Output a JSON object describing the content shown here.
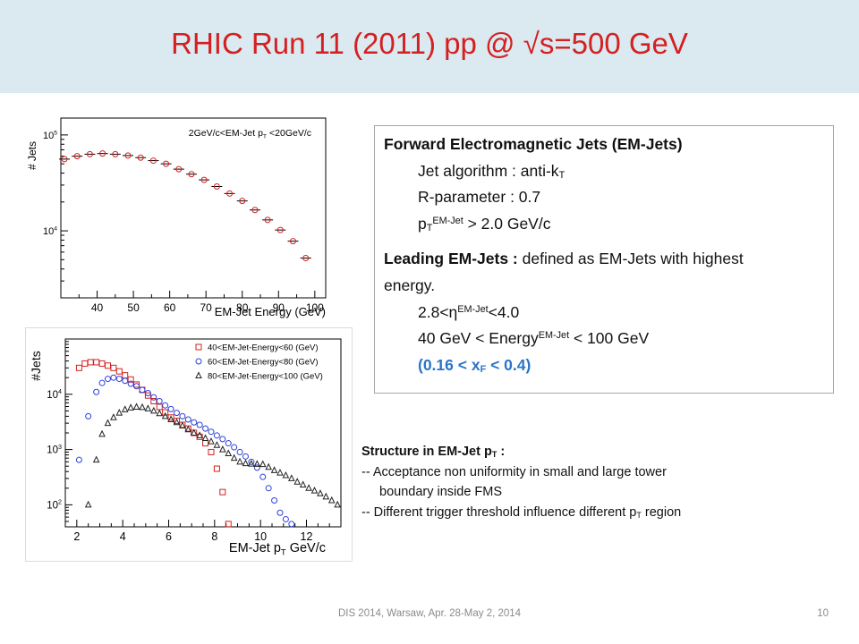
{
  "slide": {
    "title": "RHIC Run 11 (2011) pp @ √s=500 GeV",
    "footer": "DIS 2014,  Warsaw,  Apr. 28-May 2, 2014",
    "page_number": "10",
    "colors": {
      "header_bg": "#dbe9f1",
      "title": "#d42020",
      "accent_blue": "#2a74c8"
    }
  },
  "infobox": {
    "heading": "Forward Electromagnetic Jets (EM-Jets)",
    "algo_text": "Jet algorithm : anti-k",
    "algo_sub": "T",
    "rparam": "R-parameter  : 0.7",
    "pt_p": "p",
    "pt_sub": "T",
    "pt_sup": "EM-Jet",
    "pt_rest": " > 2.0 GeV/c",
    "leading_bold": "Leading EM-Jets :",
    "leading_rest": "  defined as EM-Jets with highest",
    "leading_cont": "energy.",
    "eta_pre": "2.8<η",
    "eta_sup": "EM-Jet",
    "eta_post": "<4.0",
    "energy_pre": "40 GeV < Energy",
    "energy_sup": "EM-Jet",
    "energy_post": " < 100 GeV",
    "xf_pre": "(0.16 < x",
    "xf_sub": "F",
    "xf_post": " < 0.4)"
  },
  "structure": {
    "heading_pre": "Structure in EM-Jet p",
    "heading_sub": "T",
    "heading_post": "  :",
    "line1": "-- Acceptance non uniformity in small and large tower",
    "line1_cont": "boundary inside FMS",
    "line2_pre": "-- Different  trigger threshold influence different  p",
    "line2_sub": "T",
    "line2_post": " region"
  },
  "chart_data": [
    {
      "type": "scatter",
      "title": "",
      "xlabel": "EM-Jet Energy (GeV)",
      "ylabel": "# Jets",
      "xlim": [
        30,
        103
      ],
      "ylim": [
        2000,
        150000
      ],
      "y_scale": "log",
      "x_ticks": [
        40,
        50,
        60,
        70,
        80,
        90,
        100
      ],
      "y_ticks": [
        {
          "value": 10000,
          "label": "10",
          "exp": "4"
        },
        {
          "value": 100000,
          "label": "10",
          "exp": "5"
        }
      ],
      "annotation": "2GeV/c<EM-Jet p",
      "annotation_sub": "T",
      "annotation_post": " <20GeV/c",
      "series": [
        {
          "color": "#d42020",
          "marker": "circle",
          "x": [
            31,
            34.5,
            38,
            41.5,
            45,
            48.5,
            52,
            55.5,
            59,
            62.5,
            66,
            69.5,
            73,
            76.5,
            80,
            83.5,
            87,
            90.5,
            94,
            97.5
          ],
          "y": [
            56000,
            60000,
            63000,
            64000,
            63000,
            61000,
            58000,
            54000,
            50000,
            44000,
            39000,
            34000,
            29000,
            24500,
            20500,
            16500,
            13000,
            10200,
            7800,
            5200
          ]
        }
      ]
    },
    {
      "type": "scatter",
      "title": "",
      "xlabel": "EM-Jet p",
      "xlabel_sub": "T",
      "xlabel_post": " GeV/c",
      "ylabel": "#Jets",
      "xlim": [
        1.5,
        13.5
      ],
      "ylim": [
        40,
        100000
      ],
      "y_scale": "log",
      "x_ticks": [
        2,
        4,
        6,
        8,
        10,
        12
      ],
      "y_ticks": [
        {
          "value": 100,
          "label": "10",
          "exp": "2"
        },
        {
          "value": 1000,
          "label": "10",
          "exp": "3"
        },
        {
          "value": 10000,
          "label": "10",
          "exp": "4"
        }
      ],
      "legend_position": "top-right",
      "series": [
        {
          "name": "40<EM-Jet-Energy<60 (GeV)",
          "color": "#d42020",
          "marker": "square",
          "x": [
            2.1,
            2.35,
            2.6,
            2.85,
            3.1,
            3.35,
            3.6,
            3.85,
            4.1,
            4.35,
            4.6,
            4.85,
            5.1,
            5.35,
            5.6,
            5.85,
            6.1,
            6.35,
            6.6,
            6.85,
            7.1,
            7.35,
            7.6,
            7.85,
            8.1,
            8.35,
            8.6
          ],
          "y": [
            30000,
            36000,
            38000,
            38000,
            36000,
            33000,
            30000,
            26000,
            22000,
            18500,
            15000,
            12000,
            9500,
            7500,
            5900,
            4700,
            3800,
            3300,
            2800,
            2400,
            2000,
            1700,
            1300,
            900,
            450,
            170,
            45
          ]
        },
        {
          "name": "60<EM-Jet-Energy<80 (GeV)",
          "color": "#2c40d8",
          "marker": "circle",
          "x": [
            2.1,
            2.5,
            2.85,
            3.1,
            3.35,
            3.6,
            3.85,
            4.1,
            4.35,
            4.6,
            4.85,
            5.1,
            5.35,
            5.6,
            5.85,
            6.1,
            6.35,
            6.6,
            6.85,
            7.1,
            7.35,
            7.6,
            7.85,
            8.1,
            8.35,
            8.6,
            8.85,
            9.1,
            9.35,
            9.6,
            9.85,
            10.1,
            10.35,
            10.6,
            10.85,
            11.1,
            11.35
          ],
          "y": [
            650,
            4000,
            11000,
            16000,
            19000,
            20000,
            19000,
            17500,
            15500,
            14000,
            12000,
            10500,
            8800,
            7500,
            6300,
            5400,
            4600,
            4000,
            3500,
            3100,
            2800,
            2400,
            2100,
            1800,
            1550,
            1300,
            1100,
            900,
            750,
            600,
            470,
            320,
            200,
            120,
            72,
            55,
            45
          ]
        },
        {
          "name": "80<EM-Jet-Energy<100 (GeV)",
          "color": "#222222",
          "marker": "triangle",
          "x": [
            2.5,
            2.85,
            3.1,
            3.35,
            3.6,
            3.85,
            4.1,
            4.35,
            4.6,
            4.85,
            5.1,
            5.35,
            5.6,
            5.85,
            6.1,
            6.35,
            6.6,
            6.85,
            7.1,
            7.35,
            7.6,
            7.85,
            8.1,
            8.35,
            8.6,
            8.85,
            9.1,
            9.35,
            9.6,
            9.85,
            10.1,
            10.35,
            10.6,
            10.85,
            11.1,
            11.35,
            11.6,
            11.85,
            12.1,
            12.35,
            12.6,
            12.85,
            13.1,
            13.35
          ],
          "y": [
            100,
            650,
            1900,
            3000,
            3800,
            4600,
            5300,
            5700,
            5900,
            5800,
            5500,
            5000,
            4500,
            4000,
            3500,
            3100,
            2700,
            2300,
            2000,
            1800,
            1600,
            1400,
            1200,
            1000,
            850,
            700,
            600,
            560,
            550,
            545,
            540,
            480,
            420,
            380,
            340,
            300,
            260,
            230,
            200,
            180,
            160,
            140,
            120,
            100
          ]
        }
      ]
    }
  ]
}
